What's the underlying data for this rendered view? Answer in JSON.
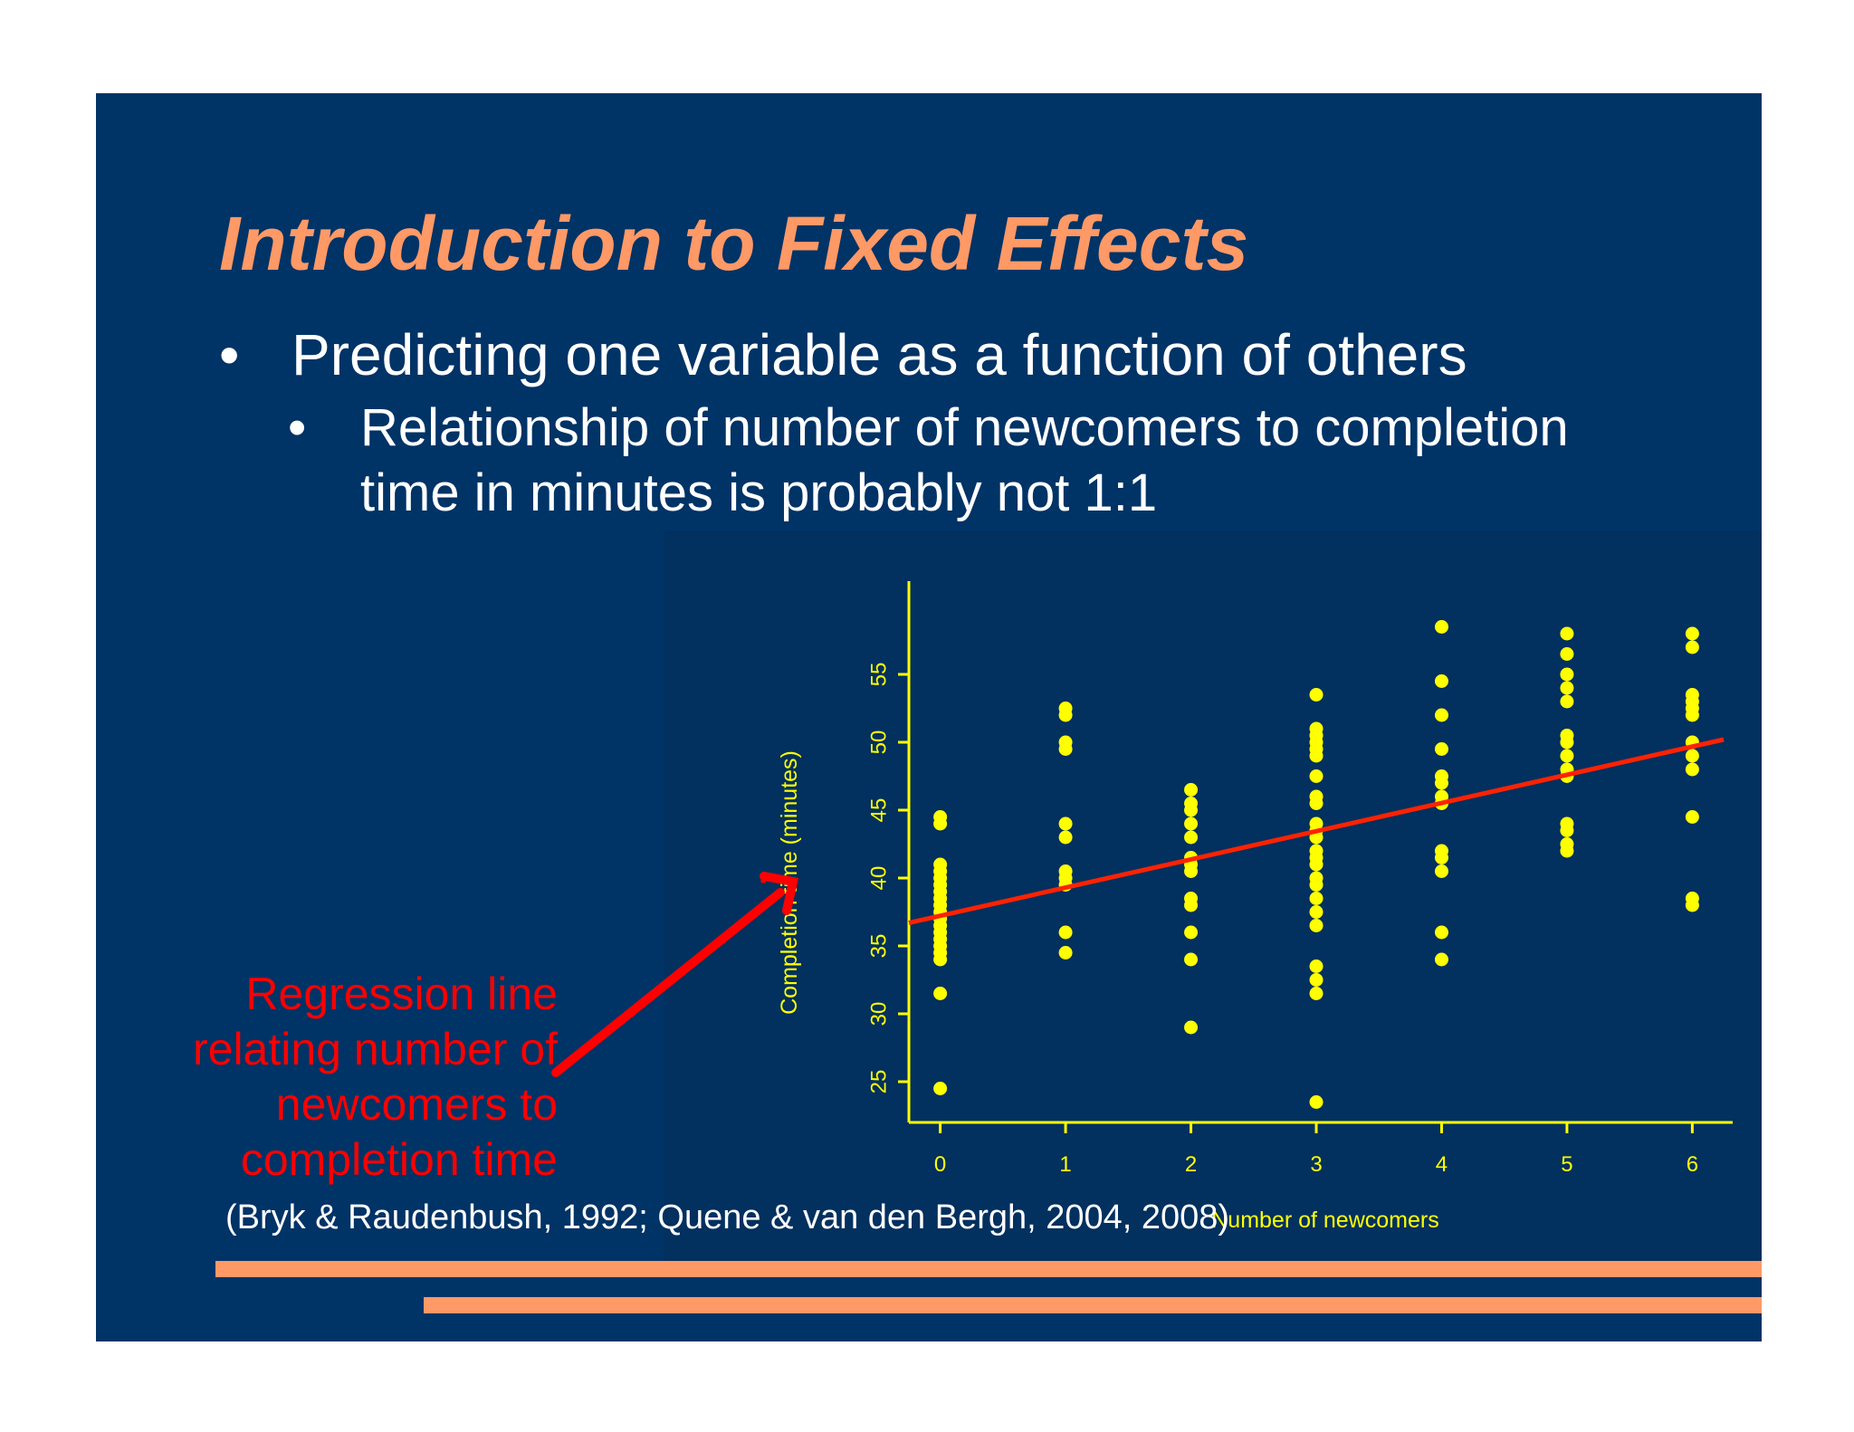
{
  "slide": {
    "title": "Introduction to Fixed Effects",
    "bullet1": "Predicting one variable as a function of others",
    "bullet2_line1": "Relationship of number of newcomers to completion",
    "bullet2_line2": "time in minutes is probably not 1:1",
    "bullet_glyph": "•",
    "annotation_lines": [
      "Regression line",
      "relating number of",
      "newcomers to",
      "completion time"
    ],
    "citation": "(Bryk & Raudenbush, 1992; Quene & van den Bergh, 2004, 2008)"
  },
  "colors": {
    "background": "#003366",
    "title": "#ff9966",
    "points": "#ffff00",
    "regression_line": "#ff2200",
    "annotation": "#ff0000",
    "rules": "#ff9966"
  },
  "chart_data": {
    "type": "scatter",
    "title": "",
    "xlabel": "Number of newcomers",
    "ylabel": "Completion time (minutes)",
    "xlim": [
      -0.25,
      6.25
    ],
    "ylim": [
      22,
      60
    ],
    "xticks": [
      0,
      1,
      2,
      3,
      4,
      5,
      6
    ],
    "yticks": [
      25,
      30,
      35,
      40,
      45,
      50,
      55
    ],
    "grid": false,
    "points": [
      [
        0,
        44.5
      ],
      [
        0,
        44
      ],
      [
        0,
        41
      ],
      [
        0,
        40.5
      ],
      [
        0,
        40
      ],
      [
        0,
        39.5
      ],
      [
        0,
        39
      ],
      [
        0,
        38.5
      ],
      [
        0,
        38
      ],
      [
        0,
        37.5
      ],
      [
        0,
        37
      ],
      [
        0,
        36.5
      ],
      [
        0,
        36
      ],
      [
        0,
        35.5
      ],
      [
        0,
        35
      ],
      [
        0,
        34.5
      ],
      [
        0,
        34
      ],
      [
        0,
        31.5
      ],
      [
        0,
        24.5
      ],
      [
        1,
        52.5
      ],
      [
        1,
        52
      ],
      [
        1,
        50
      ],
      [
        1,
        49.5
      ],
      [
        1,
        44
      ],
      [
        1,
        43
      ],
      [
        1,
        40.5
      ],
      [
        1,
        40
      ],
      [
        1,
        39.5
      ],
      [
        1,
        36
      ],
      [
        1,
        34.5
      ],
      [
        2,
        46.5
      ],
      [
        2,
        45.5
      ],
      [
        2,
        45
      ],
      [
        2,
        44
      ],
      [
        2,
        43
      ],
      [
        2,
        41.5
      ],
      [
        2,
        41
      ],
      [
        2,
        40.5
      ],
      [
        2,
        38.5
      ],
      [
        2,
        38
      ],
      [
        2,
        36
      ],
      [
        2,
        34
      ],
      [
        2,
        29
      ],
      [
        3,
        53.5
      ],
      [
        3,
        51
      ],
      [
        3,
        50.5
      ],
      [
        3,
        50
      ],
      [
        3,
        49.5
      ],
      [
        3,
        49
      ],
      [
        3,
        47.5
      ],
      [
        3,
        46
      ],
      [
        3,
        45.5
      ],
      [
        3,
        44
      ],
      [
        3,
        43.5
      ],
      [
        3,
        43
      ],
      [
        3,
        42
      ],
      [
        3,
        41.5
      ],
      [
        3,
        41
      ],
      [
        3,
        40
      ],
      [
        3,
        39.5
      ],
      [
        3,
        38.5
      ],
      [
        3,
        37.5
      ],
      [
        3,
        36.5
      ],
      [
        3,
        33.5
      ],
      [
        3,
        32.5
      ],
      [
        3,
        31.5
      ],
      [
        3,
        23.5
      ],
      [
        4,
        58.5
      ],
      [
        4,
        54.5
      ],
      [
        4,
        52
      ],
      [
        4,
        49.5
      ],
      [
        4,
        47.5
      ],
      [
        4,
        47
      ],
      [
        4,
        46
      ],
      [
        4,
        45.5
      ],
      [
        4,
        42
      ],
      [
        4,
        41.5
      ],
      [
        4,
        40.5
      ],
      [
        4,
        36
      ],
      [
        4,
        34
      ],
      [
        5,
        58
      ],
      [
        5,
        56.5
      ],
      [
        5,
        55
      ],
      [
        5,
        54
      ],
      [
        5,
        53
      ],
      [
        5,
        50.5
      ],
      [
        5,
        50
      ],
      [
        5,
        49
      ],
      [
        5,
        48
      ],
      [
        5,
        47.5
      ],
      [
        5,
        44
      ],
      [
        5,
        43.5
      ],
      [
        5,
        42.5
      ],
      [
        5,
        42
      ],
      [
        6,
        58
      ],
      [
        6,
        57
      ],
      [
        6,
        53.5
      ],
      [
        6,
        53
      ],
      [
        6,
        52.5
      ],
      [
        6,
        52
      ],
      [
        6,
        50
      ],
      [
        6,
        49
      ],
      [
        6,
        48
      ],
      [
        6,
        44.5
      ],
      [
        6,
        38.5
      ],
      [
        6,
        38
      ]
    ],
    "regression_line": {
      "x": [
        -0.25,
        6.25
      ],
      "y": [
        36.7,
        50.2
      ]
    }
  }
}
